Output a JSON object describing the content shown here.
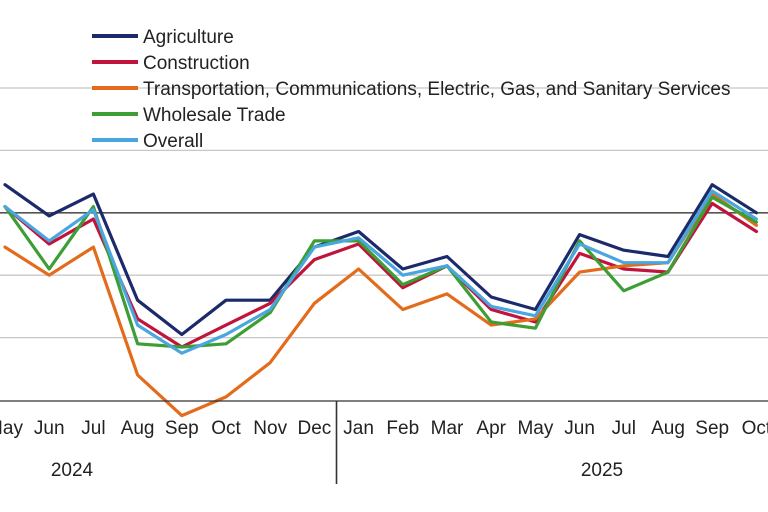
{
  "chart_data": {
    "type": "line",
    "categories": [
      "May",
      "Jun",
      "Jul",
      "Aug",
      "Sep",
      "Oct",
      "Nov",
      "Dec",
      "Jan",
      "Feb",
      "Mar",
      "Apr",
      "May",
      "Jun",
      "Jul",
      "Aug",
      "Sep",
      "Oct"
    ],
    "x_groups": [
      {
        "label": "2024",
        "start": 0,
        "end": 7
      },
      {
        "label": "2025",
        "start": 8,
        "end": 17
      }
    ],
    "ylim": [
      0,
      10
    ],
    "grid": true,
    "reference_line": 6.0,
    "legend_position": "top-left",
    "series": [
      {
        "name": "Agriculture",
        "color": "#1b2a6b",
        "values": [
          6.9,
          5.9,
          6.6,
          3.2,
          2.1,
          3.2,
          3.2,
          4.9,
          5.4,
          4.2,
          4.6,
          3.3,
          2.9,
          5.3,
          4.8,
          4.6,
          6.9,
          6.0
        ]
      },
      {
        "name": "Construction",
        "color": "#c0143c",
        "values": [
          6.2,
          5.0,
          5.8,
          2.6,
          1.7,
          2.4,
          3.1,
          4.5,
          5.0,
          3.6,
          4.3,
          2.9,
          2.5,
          4.7,
          4.2,
          4.1,
          6.3,
          5.4
        ]
      },
      {
        "name": "Transportation, Communications, Electric, Gas, and Sanitary Services",
        "color": "#e36c1c",
        "values": [
          4.9,
          4.0,
          4.9,
          0.8,
          -0.5,
          0.1,
          1.2,
          3.1,
          4.2,
          2.9,
          3.4,
          2.4,
          2.6,
          4.1,
          4.3,
          4.4,
          6.6,
          5.6
        ]
      },
      {
        "name": "Wholesale Trade",
        "color": "#3c9e34",
        "values": [
          6.2,
          4.2,
          6.2,
          1.8,
          1.7,
          1.8,
          2.8,
          5.1,
          5.1,
          3.7,
          4.3,
          2.5,
          2.3,
          5.1,
          3.5,
          4.1,
          6.5,
          5.7
        ]
      },
      {
        "name": "Overall",
        "color": "#49a6de",
        "values": [
          6.2,
          5.1,
          6.1,
          2.4,
          1.5,
          2.1,
          2.9,
          4.9,
          5.2,
          4.0,
          4.3,
          3.0,
          2.7,
          5.0,
          4.4,
          4.4,
          6.7,
          5.8
        ]
      }
    ]
  }
}
